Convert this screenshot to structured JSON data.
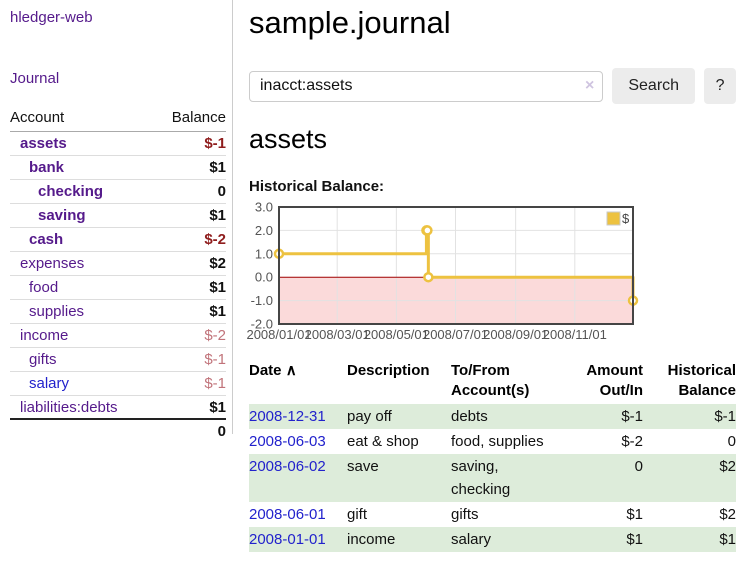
{
  "sidebar": {
    "brand": "hledger-web",
    "nav": {
      "journal": "Journal"
    },
    "accounts_table": {
      "headers": {
        "account": "Account",
        "balance": "Balance"
      },
      "rows": [
        {
          "name": "assets",
          "indent": 0,
          "bold": true,
          "balance": "$-1",
          "balance_neg": "strong",
          "link": "purple"
        },
        {
          "name": "bank",
          "indent": 1,
          "bold": true,
          "balance": "$1",
          "balance_neg": "none",
          "link": "purple"
        },
        {
          "name": "checking",
          "indent": 2,
          "bold": true,
          "balance": "0",
          "balance_neg": "none",
          "link": "purple"
        },
        {
          "name": "saving",
          "indent": 2,
          "bold": true,
          "balance": "$1",
          "balance_neg": "none",
          "link": "purple"
        },
        {
          "name": "cash",
          "indent": 1,
          "bold": true,
          "balance": "$-2",
          "balance_neg": "strong",
          "link": "purple"
        },
        {
          "name": "expenses",
          "indent": 0,
          "bold": false,
          "balance": "$2",
          "balance_neg": "none",
          "link": "purple"
        },
        {
          "name": "food",
          "indent": 1,
          "bold": false,
          "balance": "$1",
          "balance_neg": "none",
          "link": "purple"
        },
        {
          "name": "supplies",
          "indent": 1,
          "bold": false,
          "balance": "$1",
          "balance_neg": "none",
          "link": "purple"
        },
        {
          "name": "income",
          "indent": 0,
          "bold": false,
          "balance": "$-2",
          "balance_neg": "soft",
          "link": "purple"
        },
        {
          "name": "gifts",
          "indent": 1,
          "bold": false,
          "balance": "$-1",
          "balance_neg": "soft",
          "link": "purple"
        },
        {
          "name": "salary",
          "indent": 1,
          "bold": false,
          "balance": "$-1",
          "balance_neg": "soft",
          "link": "blue"
        },
        {
          "name": "liabilities:debts",
          "indent": 0,
          "bold": false,
          "balance": "$1",
          "balance_neg": "none",
          "link": "purple"
        }
      ],
      "total": "0"
    }
  },
  "header": {
    "title": "sample.journal"
  },
  "search": {
    "query": "inacct:assets",
    "clear_icon": "×",
    "button": "Search",
    "help_button": "?"
  },
  "account_page": {
    "heading": "assets",
    "chart_label": "Historical Balance:"
  },
  "chart_data": {
    "type": "line",
    "title": "Historical Balance",
    "step": true,
    "series": [
      {
        "name": "$",
        "color": "#edc240",
        "points": [
          [
            "2008-01-01",
            1
          ],
          [
            "2008-06-01",
            2
          ],
          [
            "2008-06-02",
            2
          ],
          [
            "2008-06-03",
            0
          ],
          [
            "2008-12-31",
            -1
          ]
        ]
      }
    ],
    "x_range": [
      "2008/01/01",
      "2008/12/31"
    ],
    "y_range": [
      -2,
      3
    ],
    "y_ticks": [
      "3.0",
      "2.0",
      "1.0",
      "0.0",
      "-1.0",
      "-2.0"
    ],
    "x_ticks": [
      "2008/01/01",
      "2008/03/01",
      "2008/05/01",
      "2008/07/01",
      "2008/09/01",
      "2008/11/01"
    ],
    "legend": "$",
    "legend_position": "top-right",
    "grid": true,
    "grid_color": "#e2e2e2",
    "border_color": "#454545",
    "tick_label_color": "#545454",
    "zero_line_color": "#a00000",
    "negative_region_color": "#fbdada"
  },
  "register_table": {
    "headers": {
      "date": {
        "label": "Date",
        "sort_icon": "∧"
      },
      "description": {
        "line1": "Description",
        "line2": ""
      },
      "accounts": {
        "line1": "To/From",
        "line2": "Account(s)"
      },
      "amount": {
        "line1": "Amount",
        "line2": "Out/In"
      },
      "balance": {
        "line1": "Historical",
        "line2": "Balance"
      }
    },
    "rows": [
      {
        "date": "2008-12-31",
        "description": "pay off",
        "accounts": "debts",
        "amount": "$-1",
        "balance": "$-1"
      },
      {
        "date": "2008-06-03",
        "description": "eat & shop",
        "accounts": "food, supplies",
        "amount": "$-2",
        "balance": "0"
      },
      {
        "date": "2008-06-02",
        "description": "save",
        "accounts": "saving,\nchecking",
        "amount": "0",
        "balance": "$2"
      },
      {
        "date": "2008-06-01",
        "description": "gift",
        "accounts": "gifts",
        "amount": "$1",
        "balance": "$2"
      },
      {
        "date": "2008-01-01",
        "description": "income",
        "accounts": "salary",
        "amount": "$1",
        "balance": "$1"
      }
    ]
  }
}
